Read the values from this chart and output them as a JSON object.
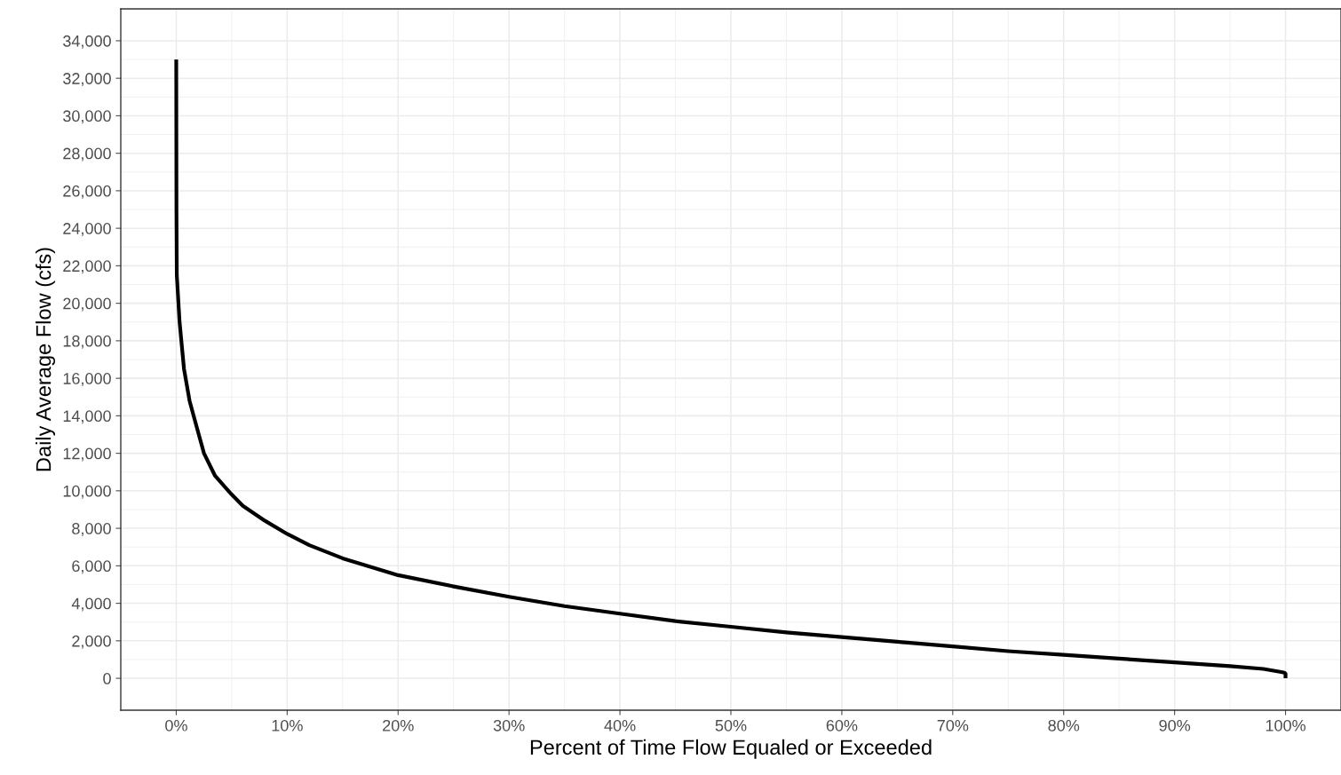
{
  "chart_data": {
    "type": "line",
    "xlabel": "Percent of Time Flow Equaled or Exceeded",
    "ylabel": "Daily Average Flow (cfs)",
    "x": [
      0,
      0.02,
      0.05,
      0.3,
      0.7,
      1.2,
      1.8,
      2.5,
      3.5,
      5,
      6,
      8,
      10,
      12,
      15,
      20,
      25,
      30,
      35,
      40,
      45,
      50,
      55,
      60,
      65,
      70,
      75,
      80,
      85,
      90,
      95,
      98,
      99.5,
      99.9,
      100,
      100
    ],
    "series": [
      {
        "color": "#000000",
        "values": [
          33000,
          25000,
          21500,
          19000,
          16500,
          14800,
          13500,
          12000,
          10800,
          9800,
          9200,
          8400,
          7700,
          7100,
          6400,
          5500,
          4900,
          4350,
          3850,
          3450,
          3050,
          2750,
          2450,
          2200,
          1950,
          1700,
          1450,
          1250,
          1050,
          850,
          650,
          500,
          350,
          300,
          250,
          0
        ]
      }
    ],
    "xlim": [
      -5,
      105
    ],
    "ylim": [
      -1700,
      35700
    ],
    "xticks": [
      {
        "value": 0,
        "label": "0%"
      },
      {
        "value": 10,
        "label": "10%"
      },
      {
        "value": 20,
        "label": "20%"
      },
      {
        "value": 30,
        "label": "30%"
      },
      {
        "value": 40,
        "label": "40%"
      },
      {
        "value": 50,
        "label": "50%"
      },
      {
        "value": 60,
        "label": "60%"
      },
      {
        "value": 70,
        "label": "70%"
      },
      {
        "value": 80,
        "label": "80%"
      },
      {
        "value": 90,
        "label": "90%"
      },
      {
        "value": 100,
        "label": "100%"
      }
    ],
    "yticks": [
      0,
      {
        "value": 2000,
        "label": "2,000"
      },
      {
        "value": 4000,
        "label": "4,000"
      },
      {
        "value": 6000,
        "label": "6,000"
      },
      {
        "value": 8000,
        "label": "8,000"
      },
      {
        "value": 10000,
        "label": "10,000"
      },
      {
        "value": 12000,
        "label": "12,000"
      },
      {
        "value": 14000,
        "label": "14,000"
      },
      {
        "value": 16000,
        "label": "16,000"
      },
      {
        "value": 18000,
        "label": "18,000"
      },
      {
        "value": 20000,
        "label": "20,000"
      },
      {
        "value": 22000,
        "label": "22,000"
      },
      {
        "value": 24000,
        "label": "24,000"
      },
      {
        "value": 26000,
        "label": "26,000"
      },
      {
        "value": 28000,
        "label": "28,000"
      },
      {
        "value": 30000,
        "label": "30,000"
      },
      {
        "value": 32000,
        "label": "32,000"
      },
      {
        "value": 34000,
        "label": "34,000"
      }
    ],
    "grid": true,
    "marker": "none",
    "line_style": "solid"
  }
}
